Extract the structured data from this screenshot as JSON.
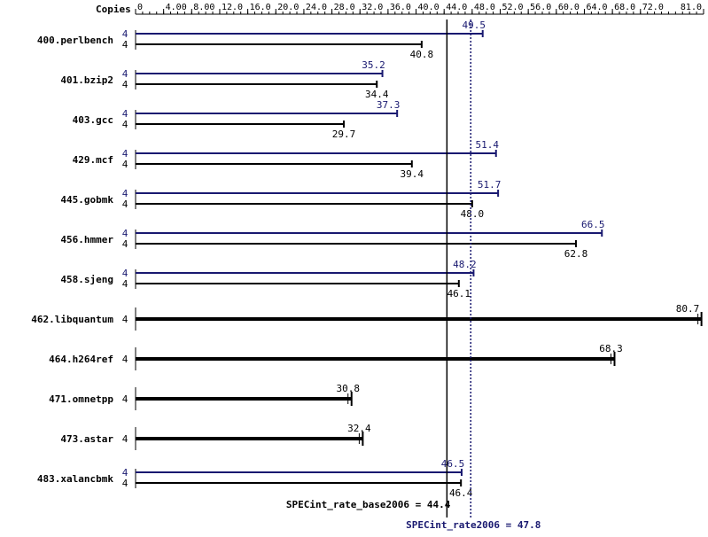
{
  "chart_data": {
    "type": "bar",
    "orientation": "horizontal",
    "axis_title": "Copies",
    "xlim": [
      0,
      81.0
    ],
    "grid": false,
    "ticks": [
      "0",
      "4.00",
      "8.00",
      "12.0",
      "16.0",
      "20.0",
      "24.0",
      "28.0",
      "32.0",
      "36.0",
      "40.0",
      "44.0",
      "48.0",
      "52.0",
      "56.0",
      "60.0",
      "64.0",
      "68.0",
      "72.0",
      "81.0"
    ],
    "colors": {
      "base": "#000000",
      "peak": "#191970"
    },
    "benchmarks": [
      {
        "name": "400.perlbench",
        "peak_copies": "4",
        "peak": 49.5,
        "peak_label": "49.5",
        "base_copies": "4",
        "base": 40.8,
        "base_label": "40.8"
      },
      {
        "name": "401.bzip2",
        "peak_copies": "4",
        "peak": 35.2,
        "peak_label": "35.2",
        "base_copies": "4",
        "base": 34.4,
        "base_label": "34.4"
      },
      {
        "name": "403.gcc",
        "peak_copies": "4",
        "peak": 37.3,
        "peak_label": "37.3",
        "base_copies": "4",
        "base": 29.7,
        "base_label": "29.7"
      },
      {
        "name": "429.mcf",
        "peak_copies": "4",
        "peak": 51.4,
        "peak_label": "51.4",
        "base_copies": "4",
        "base": 39.4,
        "base_label": "39.4"
      },
      {
        "name": "445.gobmk",
        "peak_copies": "4",
        "peak": 51.7,
        "peak_label": "51.7",
        "base_copies": "4",
        "base": 48.0,
        "base_label": "48.0"
      },
      {
        "name": "456.hmmer",
        "peak_copies": "4",
        "peak": 66.5,
        "peak_label": "66.5",
        "base_copies": "4",
        "base": 62.8,
        "base_label": "62.8"
      },
      {
        "name": "458.sjeng",
        "peak_copies": "4",
        "peak": 48.2,
        "peak_label": "48.2",
        "base_copies": "4",
        "base": 46.1,
        "base_label": "46.1"
      },
      {
        "name": "462.libquantum",
        "base_copies": "4",
        "base": 80.7,
        "base_label": "80.7"
      },
      {
        "name": "464.h264ref",
        "base_copies": "4",
        "base": 68.3,
        "base_label": "68.3"
      },
      {
        "name": "471.omnetpp",
        "base_copies": "4",
        "base": 30.8,
        "base_label": "30.8"
      },
      {
        "name": "473.astar",
        "base_copies": "4",
        "base": 32.4,
        "base_label": "32.4"
      },
      {
        "name": "483.xalancbmk",
        "peak_copies": "4",
        "peak": 46.5,
        "peak_label": "46.5",
        "base_copies": "4",
        "base": 46.4,
        "base_label": "46.4"
      }
    ],
    "summary": {
      "base_value": 44.4,
      "base_label": "SPECint_rate_base2006 = 44.4",
      "peak_value": 47.8,
      "peak_label": "SPECint_rate2006 = 47.8"
    }
  }
}
